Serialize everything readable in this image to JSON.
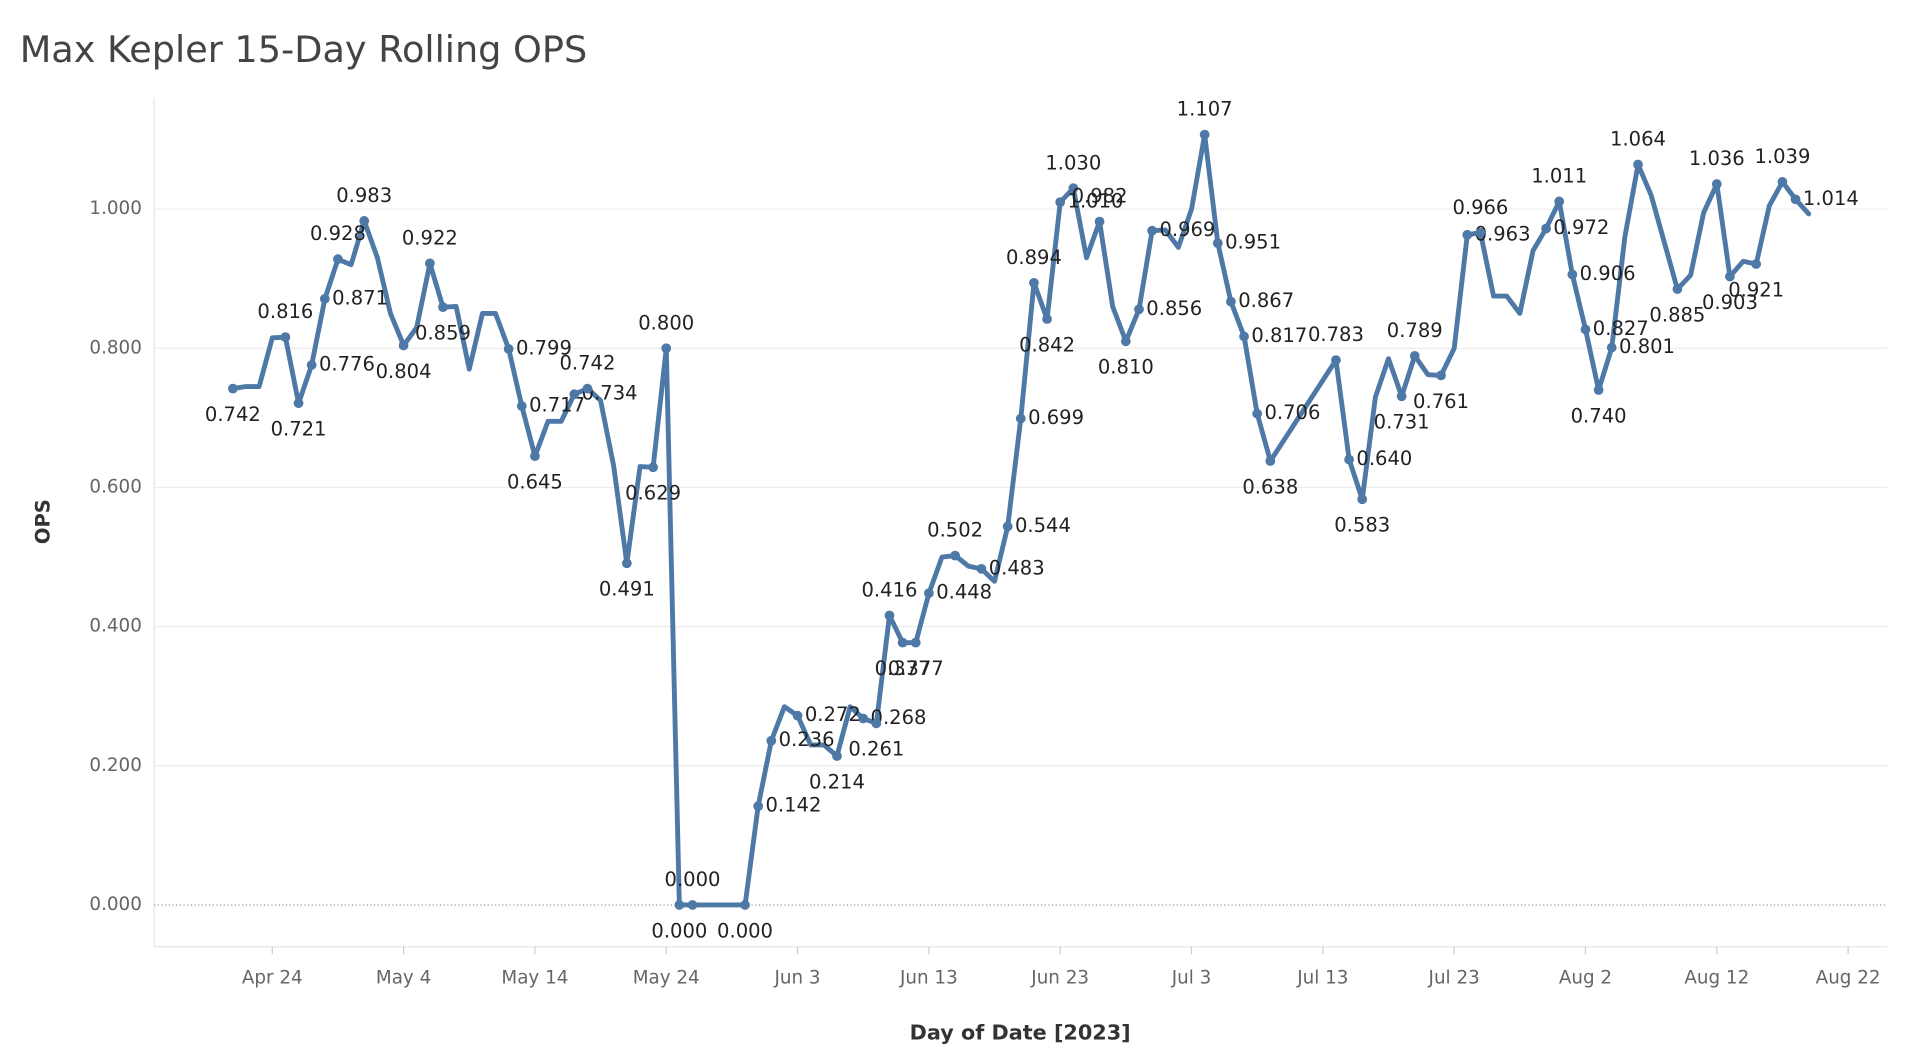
{
  "chart_data": {
    "type": "line",
    "title": "Max Kepler 15-Day Rolling OPS",
    "x_label": "Day of Date [2023]",
    "y_label": "OPS",
    "color": "#4e79a7",
    "grid": true,
    "xlim": [
      "2023-04-15",
      "2023-08-25"
    ],
    "xticks": [
      {
        "value": "2023-04-24",
        "label": "Apr 24"
      },
      {
        "value": "2023-05-04",
        "label": "May 4"
      },
      {
        "value": "2023-05-14",
        "label": "May 14"
      },
      {
        "value": "2023-05-24",
        "label": "May 24"
      },
      {
        "value": "2023-06-03",
        "label": "Jun 3"
      },
      {
        "value": "2023-06-13",
        "label": "Jun 13"
      },
      {
        "value": "2023-06-23",
        "label": "Jun 23"
      },
      {
        "value": "2023-07-03",
        "label": "Jul 3"
      },
      {
        "value": "2023-07-13",
        "label": "Jul 13"
      },
      {
        "value": "2023-07-23",
        "label": "Jul 23"
      },
      {
        "value": "2023-08-02",
        "label": "Aug 2"
      },
      {
        "value": "2023-08-12",
        "label": "Aug 12"
      },
      {
        "value": "2023-08-22",
        "label": "Aug 22"
      }
    ],
    "ylim": [
      -0.06,
      1.16
    ],
    "yticks": [
      {
        "value": 0,
        "label": "0.000"
      },
      {
        "value": 0.2,
        "label": "0.200"
      },
      {
        "value": 0.4,
        "label": "0.400"
      },
      {
        "value": 0.6,
        "label": "0.600"
      },
      {
        "value": 0.8,
        "label": "0.800"
      },
      {
        "value": 1,
        "label": "1.000"
      }
    ],
    "x": [
      "2023-04-21",
      "2023-04-22",
      "2023-04-23",
      "2023-04-24",
      "2023-04-25",
      "2023-04-26",
      "2023-04-27",
      "2023-04-28",
      "2023-04-29",
      "2023-04-30",
      "2023-05-01",
      "2023-05-02",
      "2023-05-03",
      "2023-05-04",
      "2023-05-05",
      "2023-05-06",
      "2023-05-07",
      "2023-05-08",
      "2023-05-09",
      "2023-05-10",
      "2023-05-11",
      "2023-05-12",
      "2023-05-13",
      "2023-05-14",
      "2023-05-15",
      "2023-05-16",
      "2023-05-17",
      "2023-05-18",
      "2023-05-19",
      "2023-05-20",
      "2023-05-21",
      "2023-05-22",
      "2023-05-23",
      "2023-05-24",
      "2023-05-25",
      "2023-05-26",
      "2023-05-27",
      "2023-05-28",
      "2023-05-29",
      "2023-05-30",
      "2023-05-31",
      "2023-06-01",
      "2023-06-02",
      "2023-06-03",
      "2023-06-04",
      "2023-06-05",
      "2023-06-06",
      "2023-06-07",
      "2023-06-08",
      "2023-06-09",
      "2023-06-10",
      "2023-06-11",
      "2023-06-12",
      "2023-06-13",
      "2023-06-14",
      "2023-06-15",
      "2023-06-16",
      "2023-06-17",
      "2023-06-18",
      "2023-06-19",
      "2023-06-20",
      "2023-06-21",
      "2023-06-22",
      "2023-06-23",
      "2023-06-24",
      "2023-06-25",
      "2023-06-26",
      "2023-06-27",
      "2023-06-28",
      "2023-06-29",
      "2023-06-30",
      "2023-07-01",
      "2023-07-02",
      "2023-07-03",
      "2023-07-04",
      "2023-07-05",
      "2023-07-06",
      "2023-07-07",
      "2023-07-08",
      "2023-07-09",
      "2023-07-14",
      "2023-07-15",
      "2023-07-16",
      "2023-07-17",
      "2023-07-18",
      "2023-07-19",
      "2023-07-20",
      "2023-07-21",
      "2023-07-22",
      "2023-07-23",
      "2023-07-24",
      "2023-07-25",
      "2023-07-26",
      "2023-07-27",
      "2023-07-28",
      "2023-07-29",
      "2023-07-30",
      "2023-07-31",
      "2023-08-01",
      "2023-08-02",
      "2023-08-03",
      "2023-08-04",
      "2023-08-05",
      "2023-08-06",
      "2023-08-07",
      "2023-08-09",
      "2023-08-10",
      "2023-08-11",
      "2023-08-12",
      "2023-08-13",
      "2023-08-14",
      "2023-08-15",
      "2023-08-16",
      "2023-08-17",
      "2023-08-18",
      "2023-08-19"
    ],
    "values": [
      0.742,
      0.745,
      0.745,
      0.815,
      0.816,
      0.721,
      0.776,
      0.871,
      0.928,
      0.92,
      0.983,
      0.93,
      0.85,
      0.804,
      0.83,
      0.922,
      0.859,
      0.86,
      0.77,
      0.85,
      0.85,
      0.799,
      0.717,
      0.645,
      0.695,
      0.695,
      0.734,
      0.742,
      0.725,
      0.63,
      0.491,
      0.63,
      0.629,
      0.8,
      0,
      0,
      0,
      0,
      0,
      0,
      0.142,
      0.236,
      0.285,
      0.272,
      0.23,
      0.23,
      0.214,
      0.285,
      0.268,
      0.261,
      0.416,
      0.377,
      0.377,
      0.448,
      0.5,
      0.502,
      0.487,
      0.483,
      0.465,
      0.544,
      0.699,
      0.894,
      0.842,
      1.01,
      1.03,
      0.93,
      0.982,
      0.86,
      0.81,
      0.856,
      0.969,
      0.97,
      0.945,
      1.0,
      1.107,
      0.951,
      0.867,
      0.817,
      0.706,
      0.638,
      0.783,
      0.64,
      0.583,
      0.73,
      0.785,
      0.731,
      0.789,
      0.762,
      0.761,
      0.8,
      0.963,
      0.966,
      0.875,
      0.875,
      0.85,
      0.94,
      0.972,
      1.011,
      0.906,
      0.827,
      0.74,
      0.801,
      0.96,
      1.064,
      1.02,
      0.885,
      0.905,
      0.995,
      1.036,
      0.903,
      0.925,
      0.921,
      1.005,
      1.039,
      1.014,
      0.993
    ],
    "value_labels": [
      "0.742",
      null,
      null,
      null,
      "0.816",
      "0.721",
      "0.776",
      "0.871",
      "0.928",
      null,
      "0.983",
      null,
      null,
      "0.804",
      null,
      "0.922",
      "0.859",
      null,
      null,
      null,
      null,
      "0.799",
      "0.717",
      "0.645",
      null,
      null,
      "0.734",
      "0.742",
      null,
      null,
      "0.491",
      null,
      "0.629",
      "0.800",
      "0.000",
      "0.000",
      null,
      null,
      null,
      "0.000",
      "0.142",
      "0.236",
      null,
      "0.272",
      null,
      null,
      "0.214",
      null,
      "0.268",
      "0.261",
      "0.416",
      "0.377",
      "0.377",
      "0.448",
      null,
      "0.502",
      null,
      "0.483",
      null,
      "0.544",
      "0.699",
      "0.894",
      "0.842",
      "1.010",
      "1.030",
      null,
      "0.982",
      null,
      "0.810",
      "0.856",
      "0.969",
      null,
      null,
      null,
      "1.107",
      "0.951",
      "0.867",
      "0.817",
      "0.706",
      "0.638",
      "0.783",
      "0.640",
      "0.583",
      null,
      null,
      "0.731",
      "0.789",
      null,
      "0.761",
      null,
      "0.963",
      "0.966",
      null,
      null,
      null,
      null,
      "0.972",
      "1.011",
      "0.906",
      "0.827",
      "0.740",
      "0.801",
      null,
      "1.064",
      null,
      "0.885",
      null,
      null,
      "1.036",
      "0.903",
      null,
      "0.921",
      null,
      "1.039",
      "1.014",
      null
    ]
  }
}
